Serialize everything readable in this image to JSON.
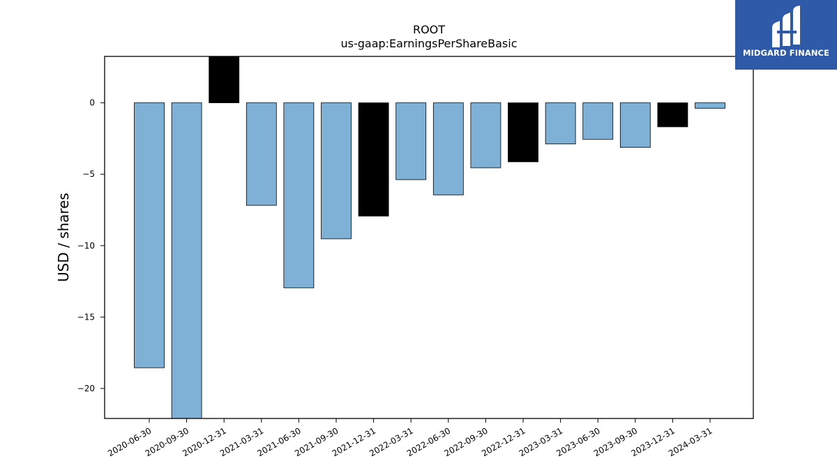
{
  "chart_data": {
    "type": "bar",
    "title": "ROOT",
    "subtitle": "us-gaap:EarningsPerShareBasic",
    "xlabel": "",
    "ylabel": "USD / shares",
    "categories": [
      "2020-06-30",
      "2020-09-30",
      "2020-12-31",
      "2021-03-31",
      "2021-06-30",
      "2021-09-30",
      "2021-12-31",
      "2022-03-31",
      "2022-06-30",
      "2022-09-30",
      "2022-12-31",
      "2023-03-31",
      "2023-06-30",
      "2023-09-30",
      "2023-12-31",
      "2024-03-31"
    ],
    "values": [
      -18.55,
      -22.3,
      3.3,
      -7.18,
      -12.95,
      -9.52,
      -7.93,
      -5.38,
      -6.45,
      -4.55,
      -4.13,
      -2.88,
      -2.56,
      -3.12,
      -1.68,
      -0.38
    ],
    "fiscal_year_end": [
      false,
      false,
      true,
      false,
      false,
      false,
      true,
      false,
      false,
      false,
      true,
      false,
      false,
      false,
      true,
      false
    ],
    "colors": {
      "quarter": "#7fb0d5",
      "year_end": "#000000",
      "edge": "#000000"
    },
    "ylim": [
      -22.1,
      3.25
    ],
    "yticks": [
      0,
      -5,
      -10,
      -15,
      -20
    ],
    "ytick_labels": [
      "0",
      "−5",
      "−10",
      "−15",
      "−20"
    ],
    "grid": false,
    "legend": "none"
  },
  "logo": {
    "text": "MIDGARD FINANCE",
    "icon": "midgard-logo-icon",
    "background": "#2e5aa8"
  }
}
